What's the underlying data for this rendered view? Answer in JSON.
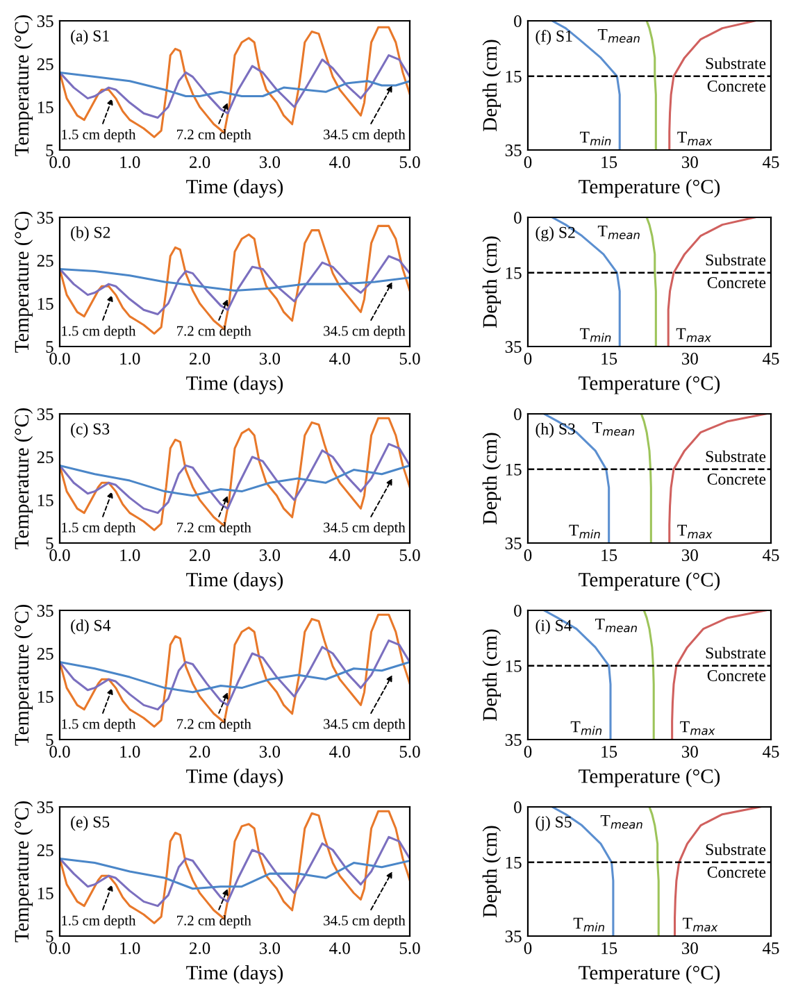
{
  "chart_data": [
    {
      "type": "line",
      "title": "(a) S1",
      "xlabel": "Time (days)",
      "ylabel": "Temperature (°C)",
      "xlim": [
        0,
        5
      ],
      "ylim": [
        5,
        35
      ],
      "xticks": [
        {
          "value": 0,
          "label": "0.0"
        },
        {
          "value": 1,
          "label": "1.0"
        },
        {
          "value": 2,
          "label": "2.0"
        },
        {
          "value": 3,
          "label": "3.0"
        },
        {
          "value": 4,
          "label": "4.0"
        },
        {
          "value": 5,
          "label": "5.0"
        }
      ],
      "yticks": [
        5,
        15,
        25,
        35
      ],
      "series": [
        {
          "color": "#e8782a",
          "x": [
            0,
            0.1,
            0.25,
            0.35,
            0.45,
            0.55,
            0.6,
            0.7,
            0.8,
            0.9,
            1.0,
            1.1,
            1.2,
            1.35,
            1.45,
            1.52,
            1.58,
            1.65,
            1.72,
            1.8,
            1.9,
            2.0,
            2.1,
            2.2,
            2.35,
            2.42,
            2.5,
            2.6,
            2.7,
            2.78,
            2.85,
            2.95,
            3.1,
            3.2,
            3.32,
            3.42,
            3.5,
            3.6,
            3.7,
            3.78,
            3.9,
            4.0,
            4.1,
            4.2,
            4.3,
            4.35,
            4.45,
            4.55,
            4.7,
            4.8,
            4.9,
            5.0
          ],
          "values": [
            23,
            17,
            13,
            12,
            15,
            18,
            19,
            19,
            17,
            14,
            12,
            11,
            10,
            8,
            9.5,
            18,
            27,
            28.5,
            28,
            22,
            18,
            15,
            13,
            11,
            9,
            15,
            27,
            30,
            31,
            30,
            24,
            19,
            16,
            13,
            11,
            20,
            30,
            32.5,
            32,
            28,
            22,
            19,
            17,
            15,
            13,
            16,
            30,
            33.5,
            33.5,
            30,
            23,
            18
          ]
        },
        {
          "color": "#7b6fbf",
          "x": [
            0,
            0.2,
            0.4,
            0.5,
            0.7,
            0.8,
            1.0,
            1.2,
            1.4,
            1.55,
            1.7,
            1.8,
            1.9,
            2.1,
            2.3,
            2.4,
            2.55,
            2.75,
            2.9,
            3.1,
            3.35,
            3.5,
            3.75,
            3.9,
            4.1,
            4.3,
            4.45,
            4.7,
            4.85,
            5.0
          ],
          "values": [
            23,
            19.5,
            17,
            17.5,
            19.5,
            19,
            16,
            13.5,
            12.5,
            15,
            21,
            23,
            22,
            18,
            14.5,
            13.5,
            19,
            24.5,
            23,
            19,
            15,
            19,
            26,
            24,
            20,
            17,
            20,
            27,
            26,
            22
          ]
        },
        {
          "color": "#4a86c8",
          "x": [
            0,
            0.5,
            1.0,
            1.5,
            1.8,
            2.0,
            2.3,
            2.6,
            2.9,
            3.2,
            3.5,
            3.8,
            4.1,
            4.4,
            4.6,
            4.8,
            5.0
          ],
          "values": [
            23,
            22,
            21,
            19,
            17.5,
            17.5,
            18.5,
            17.5,
            17.5,
            19.5,
            19,
            18.5,
            20.5,
            21,
            20,
            20,
            21
          ]
        }
      ],
      "annotations": [
        {
          "text": "1.5 cm depth",
          "x": 0.75,
          "y": 17
        },
        {
          "text": "7.2 cm depth",
          "x": 2.4,
          "y": 16
        },
        {
          "text": "34.5 cm depth",
          "x": 4.75,
          "y": 20
        }
      ]
    },
    {
      "type": "line",
      "title": "(b) S2",
      "xlabel": "Time (days)",
      "ylabel": "Temperature (°C)",
      "xlim": [
        0,
        5
      ],
      "ylim": [
        5,
        35
      ],
      "xticks": [
        {
          "value": 0,
          "label": "0.0"
        },
        {
          "value": 1,
          "label": "1.0"
        },
        {
          "value": 2,
          "label": "2.0"
        },
        {
          "value": 3,
          "label": "3.0"
        },
        {
          "value": 4,
          "label": "4.0"
        },
        {
          "value": 5,
          "label": "5.0"
        }
      ],
      "yticks": [
        5,
        15,
        25,
        35
      ],
      "series": [
        {
          "color": "#e8782a",
          "x": [
            0,
            0.1,
            0.25,
            0.35,
            0.45,
            0.55,
            0.6,
            0.7,
            0.8,
            0.9,
            1.0,
            1.1,
            1.2,
            1.35,
            1.45,
            1.52,
            1.58,
            1.65,
            1.72,
            1.8,
            1.9,
            2.0,
            2.1,
            2.2,
            2.35,
            2.42,
            2.5,
            2.6,
            2.7,
            2.78,
            2.85,
            2.95,
            3.1,
            3.2,
            3.32,
            3.42,
            3.5,
            3.6,
            3.7,
            3.78,
            3.9,
            4.0,
            4.1,
            4.2,
            4.3,
            4.35,
            4.45,
            4.55,
            4.7,
            4.8,
            4.9,
            5.0
          ],
          "values": [
            23,
            17,
            13,
            12,
            15,
            18,
            19,
            19,
            17,
            14,
            12,
            11,
            10,
            8,
            9.5,
            18,
            26,
            28,
            27.5,
            22,
            18,
            15,
            13,
            11,
            9,
            15,
            27,
            30,
            31,
            30,
            24,
            19,
            16,
            13,
            11,
            20,
            29,
            32,
            32,
            28,
            22,
            19,
            17,
            15,
            13,
            16,
            29,
            33,
            33,
            30,
            23,
            18
          ]
        },
        {
          "color": "#7b6fbf",
          "x": [
            0,
            0.2,
            0.4,
            0.5,
            0.7,
            0.8,
            1.0,
            1.2,
            1.4,
            1.55,
            1.7,
            1.8,
            1.9,
            2.1,
            2.3,
            2.4,
            2.55,
            2.75,
            2.9,
            3.1,
            3.35,
            3.5,
            3.75,
            3.9,
            4.1,
            4.3,
            4.45,
            4.7,
            4.85,
            5.0
          ],
          "values": [
            23,
            19.5,
            17,
            17.5,
            19.5,
            19,
            16,
            13.5,
            12.5,
            15,
            20.5,
            22.5,
            22,
            18,
            14.5,
            13.5,
            18.5,
            23.5,
            23,
            19,
            15.5,
            19,
            24.5,
            23.5,
            20,
            17.5,
            20,
            26,
            25,
            22
          ]
        },
        {
          "color": "#4a86c8",
          "x": [
            0,
            0.5,
            1.0,
            1.5,
            2.0,
            2.5,
            3.0,
            3.5,
            4.0,
            4.5,
            5.0
          ],
          "values": [
            23,
            22.5,
            21.5,
            20,
            19,
            18,
            18.5,
            19.5,
            19.5,
            20,
            21
          ]
        }
      ],
      "annotations": [
        {
          "text": "1.5 cm depth",
          "x": 0.75,
          "y": 17
        },
        {
          "text": "7.2 cm depth",
          "x": 2.4,
          "y": 16
        },
        {
          "text": "34.5 cm depth",
          "x": 4.75,
          "y": 20
        }
      ]
    },
    {
      "type": "line",
      "title": "(c) S3",
      "xlabel": "Time (days)",
      "ylabel": "Temperature (°C)",
      "xlim": [
        0,
        5
      ],
      "ylim": [
        5,
        35
      ],
      "xticks": [
        {
          "value": 0,
          "label": "0.0"
        },
        {
          "value": 1,
          "label": "1.0"
        },
        {
          "value": 2,
          "label": "2.0"
        },
        {
          "value": 3,
          "label": "3.0"
        },
        {
          "value": 4,
          "label": "4.0"
        },
        {
          "value": 5,
          "label": "5.0"
        }
      ],
      "yticks": [
        5,
        15,
        25,
        35
      ],
      "series": [
        {
          "color": "#e8782a",
          "x": [
            0,
            0.1,
            0.25,
            0.35,
            0.45,
            0.55,
            0.6,
            0.7,
            0.8,
            0.9,
            1.0,
            1.1,
            1.2,
            1.35,
            1.45,
            1.52,
            1.58,
            1.65,
            1.72,
            1.8,
            1.9,
            2.0,
            2.1,
            2.2,
            2.35,
            2.42,
            2.5,
            2.6,
            2.7,
            2.78,
            2.85,
            2.95,
            3.1,
            3.2,
            3.32,
            3.42,
            3.5,
            3.6,
            3.7,
            3.78,
            3.9,
            4.0,
            4.1,
            4.2,
            4.3,
            4.35,
            4.45,
            4.55,
            4.7,
            4.8,
            4.9,
            5.0
          ],
          "values": [
            23,
            17,
            13,
            12,
            15,
            18,
            19,
            19,
            17,
            14,
            12,
            11,
            10,
            8,
            9.5,
            18,
            27,
            29,
            28.5,
            22,
            18,
            15,
            13,
            11,
            9,
            15,
            27,
            30.5,
            31.5,
            30,
            24,
            19,
            16,
            13,
            11,
            20,
            30,
            33,
            32.5,
            28,
            22,
            19,
            17,
            15,
            13,
            16,
            30,
            34,
            34,
            30,
            23,
            18
          ]
        },
        {
          "color": "#7b6fbf",
          "x": [
            0,
            0.2,
            0.4,
            0.5,
            0.7,
            0.8,
            1.0,
            1.2,
            1.4,
            1.55,
            1.7,
            1.8,
            1.9,
            2.1,
            2.3,
            2.4,
            2.55,
            2.75,
            2.9,
            3.1,
            3.35,
            3.5,
            3.75,
            3.9,
            4.1,
            4.3,
            4.45,
            4.7,
            4.85,
            5.0
          ],
          "values": [
            23,
            19,
            16.5,
            17,
            19,
            18.5,
            15.5,
            13,
            12,
            14.5,
            21,
            23,
            22.5,
            18,
            14,
            13,
            18.5,
            25,
            24,
            19.5,
            15,
            19,
            26.5,
            25,
            20.5,
            17,
            20,
            28,
            27,
            23
          ]
        },
        {
          "color": "#4a86c8",
          "x": [
            0,
            0.5,
            1.0,
            1.5,
            1.9,
            2.3,
            2.6,
            3.0,
            3.4,
            3.8,
            4.2,
            4.6,
            5.0
          ],
          "values": [
            23,
            21,
            19.5,
            17,
            16,
            17.5,
            17,
            19,
            20,
            19,
            22,
            21,
            23
          ]
        }
      ],
      "annotations": [
        {
          "text": "1.5 cm depth",
          "x": 0.75,
          "y": 17
        },
        {
          "text": "7.2 cm depth",
          "x": 2.4,
          "y": 16
        },
        {
          "text": "34.5 cm depth",
          "x": 4.75,
          "y": 20
        }
      ]
    },
    {
      "type": "line",
      "title": "(d) S4",
      "xlabel": "Time (days)",
      "ylabel": "Temperature (°C)",
      "xlim": [
        0,
        5
      ],
      "ylim": [
        5,
        35
      ],
      "xticks": [
        {
          "value": 0,
          "label": "0.0"
        },
        {
          "value": 1,
          "label": "1.0"
        },
        {
          "value": 2,
          "label": "2.0"
        },
        {
          "value": 3,
          "label": "3.0"
        },
        {
          "value": 4,
          "label": "4.0"
        },
        {
          "value": 5,
          "label": "5.0"
        }
      ],
      "yticks": [
        5,
        15,
        25,
        35
      ],
      "series": [
        {
          "color": "#e8782a",
          "x": [
            0,
            0.1,
            0.25,
            0.35,
            0.45,
            0.55,
            0.6,
            0.7,
            0.8,
            0.9,
            1.0,
            1.1,
            1.2,
            1.35,
            1.45,
            1.52,
            1.58,
            1.65,
            1.72,
            1.8,
            1.9,
            2.0,
            2.1,
            2.2,
            2.35,
            2.42,
            2.5,
            2.6,
            2.7,
            2.78,
            2.85,
            2.95,
            3.1,
            3.2,
            3.32,
            3.42,
            3.5,
            3.6,
            3.7,
            3.78,
            3.9,
            4.0,
            4.1,
            4.2,
            4.3,
            4.35,
            4.45,
            4.55,
            4.7,
            4.8,
            4.9,
            5.0
          ],
          "values": [
            23,
            17,
            13,
            12,
            15,
            18,
            19,
            19,
            17,
            14,
            12,
            11,
            10,
            8,
            9.5,
            18,
            27,
            29,
            28.5,
            22,
            18,
            15,
            13,
            11,
            9,
            15,
            27,
            30,
            31,
            30,
            24,
            19,
            16,
            13,
            11,
            20,
            30,
            33,
            32.5,
            28,
            22,
            19,
            17,
            15,
            13,
            16,
            30,
            34,
            34,
            30,
            23,
            18
          ]
        },
        {
          "color": "#7b6fbf",
          "x": [
            0,
            0.2,
            0.4,
            0.5,
            0.7,
            0.8,
            1.0,
            1.2,
            1.4,
            1.55,
            1.7,
            1.8,
            1.9,
            2.1,
            2.3,
            2.4,
            2.55,
            2.75,
            2.9,
            3.1,
            3.35,
            3.5,
            3.75,
            3.9,
            4.1,
            4.3,
            4.45,
            4.7,
            4.85,
            5.0
          ],
          "values": [
            23,
            19,
            16.5,
            17,
            19,
            18.5,
            15.5,
            13,
            12,
            14.5,
            21,
            23,
            22.5,
            18,
            14,
            13,
            18.5,
            25,
            24,
            19.5,
            15,
            19,
            26.5,
            25,
            20.5,
            17,
            20,
            28,
            27,
            23
          ]
        },
        {
          "color": "#4a86c8",
          "x": [
            0,
            0.5,
            1.0,
            1.5,
            1.9,
            2.3,
            2.6,
            3.0,
            3.4,
            3.8,
            4.2,
            4.6,
            5.0
          ],
          "values": [
            23,
            21.5,
            19.5,
            17,
            16,
            17.5,
            17,
            19,
            20,
            19,
            21.5,
            21,
            23
          ]
        }
      ],
      "annotations": [
        {
          "text": "1.5 cm depth",
          "x": 0.75,
          "y": 17
        },
        {
          "text": "7.2 cm depth",
          "x": 2.4,
          "y": 16
        },
        {
          "text": "34.5 cm depth",
          "x": 4.75,
          "y": 20
        }
      ]
    },
    {
      "type": "line",
      "title": "(e) S5",
      "xlabel": "Time (days)",
      "ylabel": "Temperature (°C)",
      "xlim": [
        0,
        5
      ],
      "ylim": [
        5,
        35
      ],
      "xticks": [
        {
          "value": 0,
          "label": "0.0"
        },
        {
          "value": 1,
          "label": "1.0"
        },
        {
          "value": 2,
          "label": "2.0"
        },
        {
          "value": 3,
          "label": "3.0"
        },
        {
          "value": 4,
          "label": "4.0"
        },
        {
          "value": 5,
          "label": "5.0"
        }
      ],
      "yticks": [
        5,
        15,
        25,
        35
      ],
      "series": [
        {
          "color": "#e8782a",
          "x": [
            0,
            0.1,
            0.25,
            0.35,
            0.45,
            0.55,
            0.6,
            0.7,
            0.8,
            0.9,
            1.0,
            1.1,
            1.2,
            1.35,
            1.45,
            1.52,
            1.58,
            1.65,
            1.72,
            1.8,
            1.9,
            2.0,
            2.1,
            2.2,
            2.35,
            2.42,
            2.5,
            2.6,
            2.7,
            2.78,
            2.85,
            2.95,
            3.1,
            3.2,
            3.32,
            3.42,
            3.5,
            3.6,
            3.7,
            3.78,
            3.9,
            4.0,
            4.1,
            4.2,
            4.3,
            4.35,
            4.45,
            4.55,
            4.7,
            4.8,
            4.9,
            5.0
          ],
          "values": [
            23,
            17,
            13,
            12,
            15,
            18,
            19,
            19,
            17,
            14,
            12,
            11,
            10,
            8,
            9.5,
            18,
            27,
            29,
            28.5,
            22,
            18,
            15,
            13,
            11,
            9,
            15,
            27,
            30.5,
            31,
            30,
            24,
            19,
            16,
            13,
            11,
            20,
            30,
            33.5,
            33,
            28,
            22,
            19,
            17,
            15,
            13.5,
            16,
            30,
            34,
            34,
            30,
            23,
            18
          ]
        },
        {
          "color": "#7b6fbf",
          "x": [
            0,
            0.2,
            0.4,
            0.5,
            0.7,
            0.8,
            1.0,
            1.2,
            1.4,
            1.55,
            1.7,
            1.8,
            1.9,
            2.1,
            2.3,
            2.4,
            2.55,
            2.75,
            2.9,
            3.1,
            3.35,
            3.5,
            3.75,
            3.9,
            4.1,
            4.3,
            4.45,
            4.7,
            4.85,
            5.0
          ],
          "values": [
            23,
            19.5,
            16.5,
            17,
            19,
            18.5,
            15.5,
            13,
            12,
            14.5,
            21,
            23,
            22.5,
            18,
            14,
            13,
            18.5,
            25,
            24,
            19.5,
            15,
            19,
            26.5,
            25,
            20.5,
            17,
            20,
            28,
            27,
            23
          ]
        },
        {
          "color": "#4a86c8",
          "x": [
            0,
            0.5,
            1.0,
            1.5,
            1.9,
            2.3,
            2.6,
            3.0,
            3.4,
            3.8,
            4.2,
            4.6,
            5.0
          ],
          "values": [
            23,
            22,
            20,
            18.5,
            16,
            16.5,
            16.5,
            19.5,
            19.5,
            18.5,
            22,
            21,
            22.5
          ]
        }
      ],
      "annotations": [
        {
          "text": "1.5 cm depth",
          "x": 0.75,
          "y": 17
        },
        {
          "text": "7.2 cm depth",
          "x": 2.4,
          "y": 16
        },
        {
          "text": "34.5 cm depth",
          "x": 4.75,
          "y": 20
        }
      ]
    },
    {
      "type": "line",
      "title": "(f) S1",
      "xlabel": "Temperature (°C)",
      "ylabel": "Depth (cm)",
      "xlim": [
        0,
        45
      ],
      "ylim": [
        35,
        0
      ],
      "xticks": [
        0,
        15,
        30,
        45
      ],
      "yticks": [
        0,
        15,
        35
      ],
      "series": [
        {
          "name": "T$_{min}$",
          "color": "#5b8fd0",
          "x": [
            4.5,
            7,
            9.5,
            13.5,
            16.5,
            17,
            17,
            17,
            17
          ],
          "values": [
            0,
            2,
            5,
            10,
            15,
            20,
            25,
            30,
            35
          ]
        },
        {
          "name": "T$_{mean}$",
          "color": "#9dc45a",
          "x": [
            22,
            22.5,
            23,
            23.5,
            23.5,
            23.7,
            23.7,
            23.7,
            23.7
          ],
          "values": [
            0,
            2,
            5,
            10,
            15,
            20,
            25,
            30,
            35
          ]
        },
        {
          "name": "T$_{max}$",
          "color": "#d0605e",
          "x": [
            42,
            36,
            32,
            29,
            27,
            26.5,
            26.3,
            26.2,
            26.2
          ],
          "values": [
            0,
            2,
            5,
            10,
            15,
            20,
            25,
            30,
            35
          ]
        }
      ],
      "ref_lines": [
        {
          "axis": "y",
          "value": 15,
          "label": null,
          "color": "#000000",
          "line_style": "dashed"
        }
      ],
      "annotations": [
        "Substrate",
        "Concrete"
      ]
    },
    {
      "type": "line",
      "title": "(g) S2",
      "xlabel": "Temperature (°C)",
      "ylabel": "Depth (cm)",
      "xlim": [
        0,
        45
      ],
      "ylim": [
        35,
        0
      ],
      "xticks": [
        0,
        15,
        30,
        45
      ],
      "yticks": [
        0,
        15,
        35
      ],
      "series": [
        {
          "name": "T$_{min}$",
          "color": "#5b8fd0",
          "x": [
            4.5,
            7,
            10,
            14,
            16.5,
            17,
            17,
            17,
            17
          ],
          "values": [
            0,
            2,
            5,
            10,
            15,
            20,
            25,
            30,
            35
          ]
        },
        {
          "name": "T$_{mean}$",
          "color": "#9dc45a",
          "x": [
            22,
            22.5,
            23,
            23.5,
            23.5,
            23.7,
            23.7,
            23.7,
            23.7
          ],
          "values": [
            0,
            2,
            5,
            10,
            15,
            20,
            25,
            30,
            35
          ]
        },
        {
          "name": "T$_{max}$",
          "color": "#d0605e",
          "x": [
            42,
            36,
            32,
            29,
            27,
            26.3,
            26,
            26,
            26
          ],
          "values": [
            0,
            2,
            5,
            10,
            15,
            20,
            25,
            30,
            35
          ]
        }
      ],
      "ref_lines": [
        {
          "axis": "y",
          "value": 15,
          "label": null,
          "color": "#000000",
          "line_style": "dashed"
        }
      ],
      "annotations": [
        "Substrate",
        "Concrete"
      ]
    },
    {
      "type": "line",
      "title": "(h) S3",
      "xlabel": "Temperature (°C)",
      "ylabel": "Depth (cm)",
      "xlim": [
        0,
        45
      ],
      "ylim": [
        35,
        0
      ],
      "xticks": [
        0,
        15,
        30,
        45
      ],
      "yticks": [
        0,
        15,
        35
      ],
      "series": [
        {
          "name": "T$_{min}$",
          "color": "#5b8fd0",
          "x": [
            3,
            5.5,
            9,
            12.5,
            14.5,
            15,
            15,
            15,
            15
          ],
          "values": [
            0,
            2,
            5,
            10,
            15,
            20,
            25,
            30,
            35
          ]
        },
        {
          "name": "T$_{mean}$",
          "color": "#9dc45a",
          "x": [
            21,
            21.5,
            22,
            22.5,
            22.7,
            22.8,
            22.8,
            22.8,
            22.8
          ],
          "values": [
            0,
            2,
            5,
            10,
            15,
            20,
            25,
            30,
            35
          ]
        },
        {
          "name": "T$_{max}$",
          "color": "#d0605e",
          "x": [
            44,
            37,
            32,
            29,
            27,
            26.5,
            26.3,
            26.2,
            26.2
          ],
          "values": [
            0,
            2,
            5,
            10,
            15,
            20,
            25,
            30,
            35
          ]
        }
      ],
      "ref_lines": [
        {
          "axis": "y",
          "value": 15,
          "label": null,
          "color": "#000000",
          "line_style": "dashed"
        }
      ],
      "annotations": [
        "Substrate",
        "Concrete"
      ]
    },
    {
      "type": "line",
      "title": "(i) S4",
      "xlabel": "Temperature (°C)",
      "ylabel": "Depth (cm)",
      "xlim": [
        0,
        45
      ],
      "ylim": [
        35,
        0
      ],
      "xticks": [
        0,
        15,
        30,
        45
      ],
      "yticks": [
        0,
        15,
        35
      ],
      "series": [
        {
          "name": "T$_{min}$",
          "color": "#5b8fd0",
          "x": [
            3,
            5.5,
            9,
            12.5,
            15,
            15.3,
            15.3,
            15.3,
            15.3
          ],
          "values": [
            0,
            2,
            5,
            10,
            15,
            20,
            25,
            30,
            35
          ]
        },
        {
          "name": "T$_{mean}$",
          "color": "#9dc45a",
          "x": [
            21.5,
            22,
            22.5,
            23,
            23.2,
            23.3,
            23.3,
            23.3,
            23.3
          ],
          "values": [
            0,
            2,
            5,
            10,
            15,
            20,
            25,
            30,
            35
          ]
        },
        {
          "name": "T$_{max}$",
          "color": "#d0605e",
          "x": [
            44,
            37,
            32.5,
            29.5,
            27.5,
            27,
            26.8,
            26.7,
            26.7
          ],
          "values": [
            0,
            2,
            5,
            10,
            15,
            20,
            25,
            30,
            35
          ]
        }
      ],
      "ref_lines": [
        {
          "axis": "y",
          "value": 15,
          "label": null,
          "color": "#000000",
          "line_style": "dashed"
        }
      ],
      "annotations": [
        "Substrate",
        "Concrete"
      ]
    },
    {
      "type": "line",
      "title": "(j) S5",
      "xlabel": "Temperature (°C)",
      "ylabel": "Depth (cm)",
      "xlim": [
        0,
        45
      ],
      "ylim": [
        35,
        0
      ],
      "xticks": [
        0,
        15,
        30,
        45
      ],
      "yticks": [
        0,
        15,
        35
      ],
      "series": [
        {
          "name": "T$_{min}$",
          "color": "#5b8fd0",
          "x": [
            4.5,
            7,
            10,
            13.5,
            15.5,
            15.8,
            15.8,
            15.8,
            15.8
          ],
          "values": [
            0,
            2,
            5,
            10,
            15,
            20,
            25,
            30,
            35
          ]
        },
        {
          "name": "T$_{mean}$",
          "color": "#9dc45a",
          "x": [
            22.5,
            23,
            23.5,
            24,
            24,
            24.2,
            24.2,
            24.2,
            24.2
          ],
          "values": [
            0,
            2,
            5,
            10,
            15,
            20,
            25,
            30,
            35
          ]
        },
        {
          "name": "T$_{max}$",
          "color": "#d0605e",
          "x": [
            43,
            36,
            32,
            29.5,
            28,
            27.5,
            27.3,
            27.2,
            27.2
          ],
          "values": [
            0,
            2,
            5,
            10,
            15,
            20,
            25,
            30,
            35
          ]
        }
      ],
      "ref_lines": [
        {
          "axis": "y",
          "value": 15,
          "label": null,
          "color": "#000000",
          "line_style": "dashed"
        }
      ],
      "annotations": [
        "Substrate",
        "Concrete"
      ]
    }
  ]
}
